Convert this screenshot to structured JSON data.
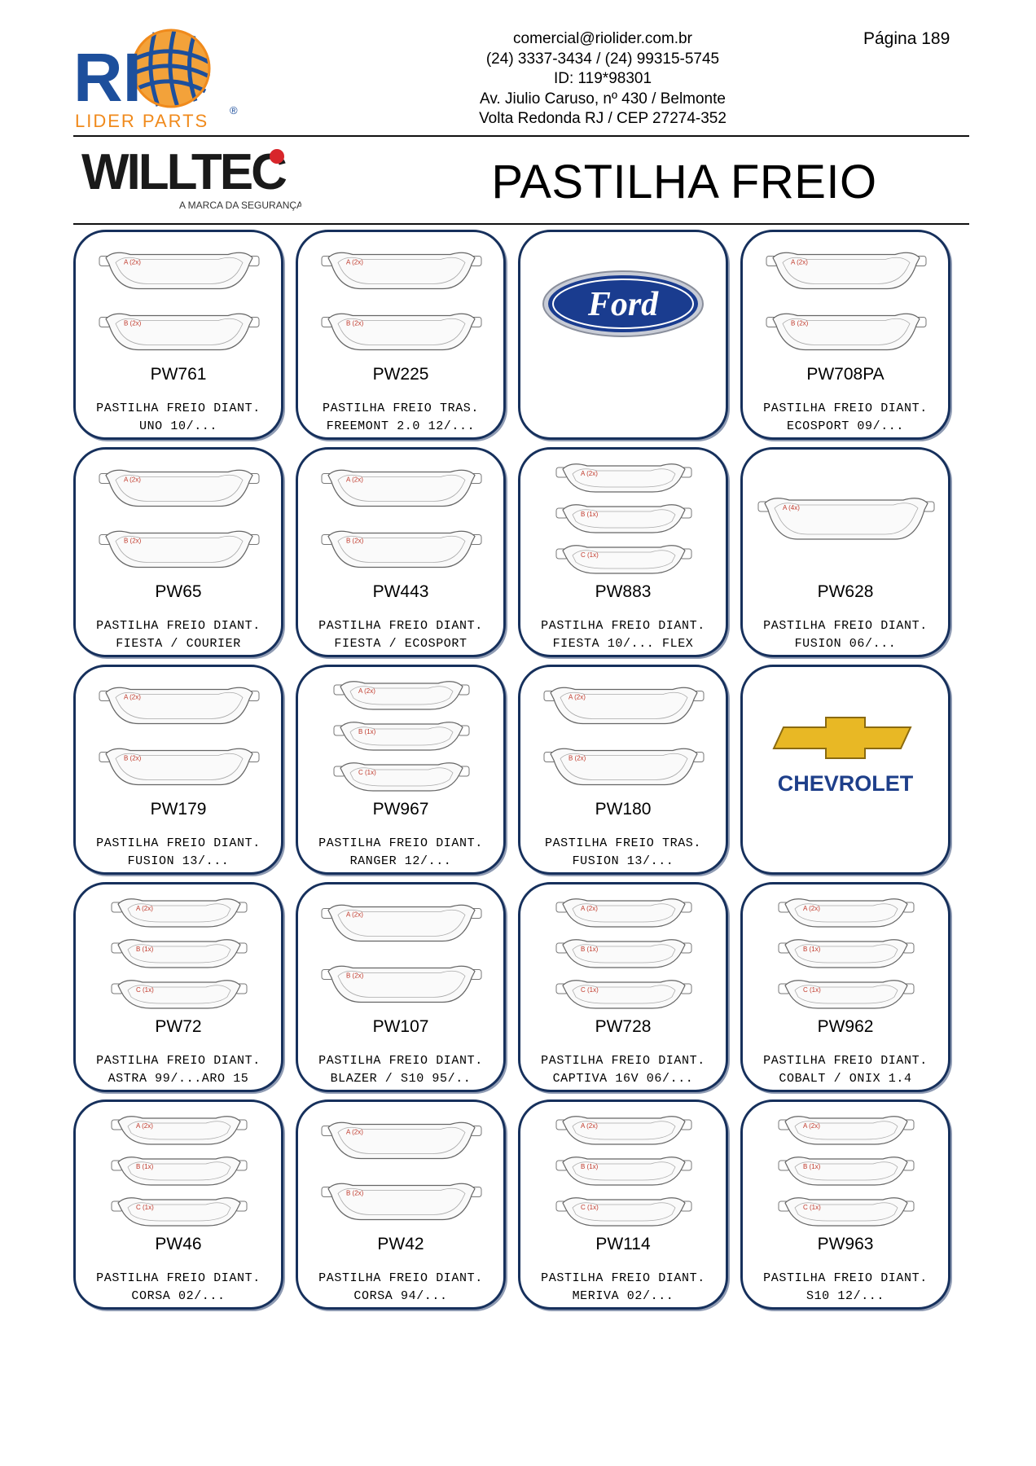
{
  "header": {
    "logo_text": {
      "main": "RI",
      "sub": "LIDER PARTS",
      "reg": "®"
    },
    "contact_lines": [
      "comercial@riolider.com.br",
      "(24) 3337-3434 / (24) 99315-5745",
      "ID:  119*98301",
      "Av. Jiulio Caruso, nº 430 / Belmonte",
      "Volta Redonda RJ / CEP 27274-352"
    ],
    "page_label": "Página 189"
  },
  "brand": {
    "name": "WILLTEC",
    "tagline": "A MARCA DA SEGURANÇA"
  },
  "title": "PASTILHA FREIO",
  "colors": {
    "card_border": "#16305c",
    "logo_blue": "#1d4f9c",
    "logo_orange": "#f08a1c",
    "ford_blue": "#1a3c8f",
    "chevy_gold": "#e8b825",
    "chevy_blue": "#1e3f8a"
  },
  "cards": [
    {
      "type": "product",
      "code": "PW761",
      "desc1": "PASTILHA FREIO DIANT.",
      "desc2": "UNO 10/...",
      "pad_labels": [
        "A (2x)",
        "B (2x)"
      ]
    },
    {
      "type": "product",
      "code": "PW225",
      "desc1": "PASTILHA FREIO TRAS.",
      "desc2": "FREEMONT 2.0 12/...",
      "pad_labels": [
        "A (2x)",
        "B (2x)"
      ]
    },
    {
      "type": "brand",
      "brand": "Ford"
    },
    {
      "type": "product",
      "code": "PW708PA",
      "desc1": "PASTILHA FREIO DIANT.",
      "desc2": "ECOSPORT 09/...",
      "pad_labels": [
        "A (2x)",
        "B (2x)"
      ]
    },
    {
      "type": "product",
      "code": "PW65",
      "desc1": "PASTILHA FREIO DIANT.",
      "desc2": "FIESTA / COURIER",
      "pad_labels": [
        "A (2x)",
        "B (2x)"
      ]
    },
    {
      "type": "product",
      "code": "PW443",
      "desc1": "PASTILHA FREIO DIANT.",
      "desc2": "FIESTA / ECOSPORT",
      "pad_labels": [
        "A (2x)",
        "B (2x)"
      ]
    },
    {
      "type": "product",
      "code": "PW883",
      "desc1": "PASTILHA FREIO DIANT.",
      "desc2": "FIESTA 10/... FLEX",
      "pad_labels": [
        "A (2x)",
        "B (1x)",
        "C (1x)"
      ]
    },
    {
      "type": "product",
      "code": "PW628",
      "desc1": "PASTILHA FREIO DIANT.",
      "desc2": "FUSION 06/...",
      "pad_labels": [
        "A (4x)"
      ]
    },
    {
      "type": "product",
      "code": "PW179",
      "desc1": "PASTILHA FREIO DIANT.",
      "desc2": "FUSION 13/...",
      "pad_labels": [
        "A (2x)",
        "B (2x)"
      ]
    },
    {
      "type": "product",
      "code": "PW967",
      "desc1": "PASTILHA FREIO DIANT.",
      "desc2": "RANGER 12/...",
      "pad_labels": [
        "A (2x)",
        "B (1x)",
        "C (1x)"
      ]
    },
    {
      "type": "product",
      "code": "PW180",
      "desc1": "PASTILHA FREIO TRAS.",
      "desc2": "FUSION 13/...",
      "pad_labels": [
        "A (2x)",
        "B (2x)"
      ]
    },
    {
      "type": "brand",
      "brand": "CHEVROLET"
    },
    {
      "type": "product",
      "code": "PW72",
      "desc1": "PASTILHA FREIO DIANT.",
      "desc2": "ASTRA 99/...ARO 15",
      "pad_labels": [
        "A (2x)",
        "B (1x)",
        "C (1x)"
      ]
    },
    {
      "type": "product",
      "code": "PW107",
      "desc1": "PASTILHA FREIO DIANT.",
      "desc2": "BLAZER / S10 95/..",
      "pad_labels": [
        "A (2x)",
        "B (2x)"
      ]
    },
    {
      "type": "product",
      "code": "PW728",
      "desc1": "PASTILHA FREIO DIANT.",
      "desc2": "CAPTIVA 16V 06/...",
      "pad_labels": [
        "A (2x)",
        "B (1x)",
        "C (1x)"
      ]
    },
    {
      "type": "product",
      "code": "PW962",
      "desc1": "PASTILHA FREIO DIANT.",
      "desc2": "COBALT / ONIX 1.4",
      "pad_labels": [
        "A (2x)",
        "B (1x)",
        "C (1x)"
      ]
    },
    {
      "type": "product",
      "code": "PW46",
      "desc1": "PASTILHA FREIO DIANT.",
      "desc2": "CORSA 02/...",
      "pad_labels": [
        "A (2x)",
        "B (1x)",
        "C (1x)"
      ]
    },
    {
      "type": "product",
      "code": "PW42",
      "desc1": "PASTILHA FREIO DIANT.",
      "desc2": "CORSA 94/...",
      "pad_labels": [
        "A (2x)",
        "B (2x)"
      ]
    },
    {
      "type": "product",
      "code": "PW114",
      "desc1": "PASTILHA FREIO DIANT.",
      "desc2": "MERIVA 02/...",
      "pad_labels": [
        "A (2x)",
        "B (1x)",
        "C (1x)"
      ]
    },
    {
      "type": "product",
      "code": "PW963",
      "desc1": "PASTILHA FREIO DIANT.",
      "desc2": "S10 12/...",
      "pad_labels": [
        "A (2x)",
        "B (1x)",
        "C (1x)"
      ]
    }
  ]
}
